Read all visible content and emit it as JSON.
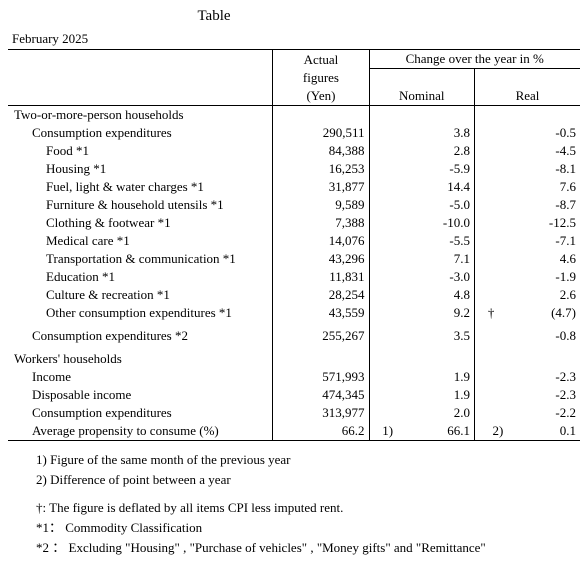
{
  "title": "Table",
  "date": "February 2025",
  "headers": {
    "actual_l1": "Actual",
    "actual_l2": "figures",
    "actual_l3": "(Yen)",
    "change": "Change over the year in %",
    "nominal": "Nominal",
    "real": "Real"
  },
  "sections": {
    "two_more": "Two-or-more-person households",
    "workers": "Workers' households"
  },
  "rows": {
    "cons_exp": {
      "label": "Consumption expenditures",
      "actual": "290,511",
      "nom": "3.8",
      "real": "-0.5"
    },
    "food": {
      "label": "Food *1",
      "actual": "84,388",
      "nom": "2.8",
      "real": "-4.5"
    },
    "housing": {
      "label": "Housing *1",
      "actual": "16,253",
      "nom": "-5.9",
      "real": "-8.1"
    },
    "fuel": {
      "label": "Fuel, light & water charges *1",
      "actual": "31,877",
      "nom": "14.4",
      "real": "7.6"
    },
    "furniture": {
      "label": "Furniture & household utensils *1",
      "actual": "9,589",
      "nom": "-5.0",
      "real": "-8.7"
    },
    "clothing": {
      "label": "Clothing & footwear *1",
      "actual": "7,388",
      "nom": "-10.0",
      "real": "-12.5"
    },
    "medical": {
      "label": "Medical care *1",
      "actual": "14,076",
      "nom": "-5.5",
      "real": "-7.1"
    },
    "transport": {
      "label": "Transportation & communication *1",
      "actual": "43,296",
      "nom": "7.1",
      "real": "4.6"
    },
    "education": {
      "label": "Education *1",
      "actual": "11,831",
      "nom": "-3.0",
      "real": "-1.9"
    },
    "culture": {
      "label": "Culture & recreation *1",
      "actual": "28,254",
      "nom": "4.8",
      "real": "2.6"
    },
    "other": {
      "label": "Other consumption expenditures *1",
      "actual": "43,559",
      "nom": "9.2",
      "real_note": "†",
      "real": "(4.7)"
    },
    "cons_exp2": {
      "label": "Consumption expenditures *2",
      "actual": "255,267",
      "nom": "3.5",
      "real": "-0.8"
    },
    "income": {
      "label": "Income",
      "actual": "571,993",
      "nom": "1.9",
      "real": "-2.3"
    },
    "disposable": {
      "label": "Disposable income",
      "actual": "474,345",
      "nom": "1.9",
      "real": "-2.3"
    },
    "cons_exp_w": {
      "label": "Consumption expenditures",
      "actual": "313,977",
      "nom": "2.0",
      "real": "-2.2"
    },
    "apc": {
      "label": "Average propensity to consume (%)",
      "actual": "66.2",
      "nom_note": "1)",
      "nom": "66.1",
      "real_note": "2)",
      "real": "0.1"
    }
  },
  "footnotes": {
    "f1": "1) Figure of the same month of the previous year",
    "f2": "2) Difference of point between a year",
    "f3": "†: The figure is deflated by all items CPI less imputed rent.",
    "f4": "*1： Commodity Classification",
    "f5": "*2 ： Excluding \"Housing\" , \"Purchase of vehicles\" , \"Money gifts\" and \"Remittance\""
  }
}
